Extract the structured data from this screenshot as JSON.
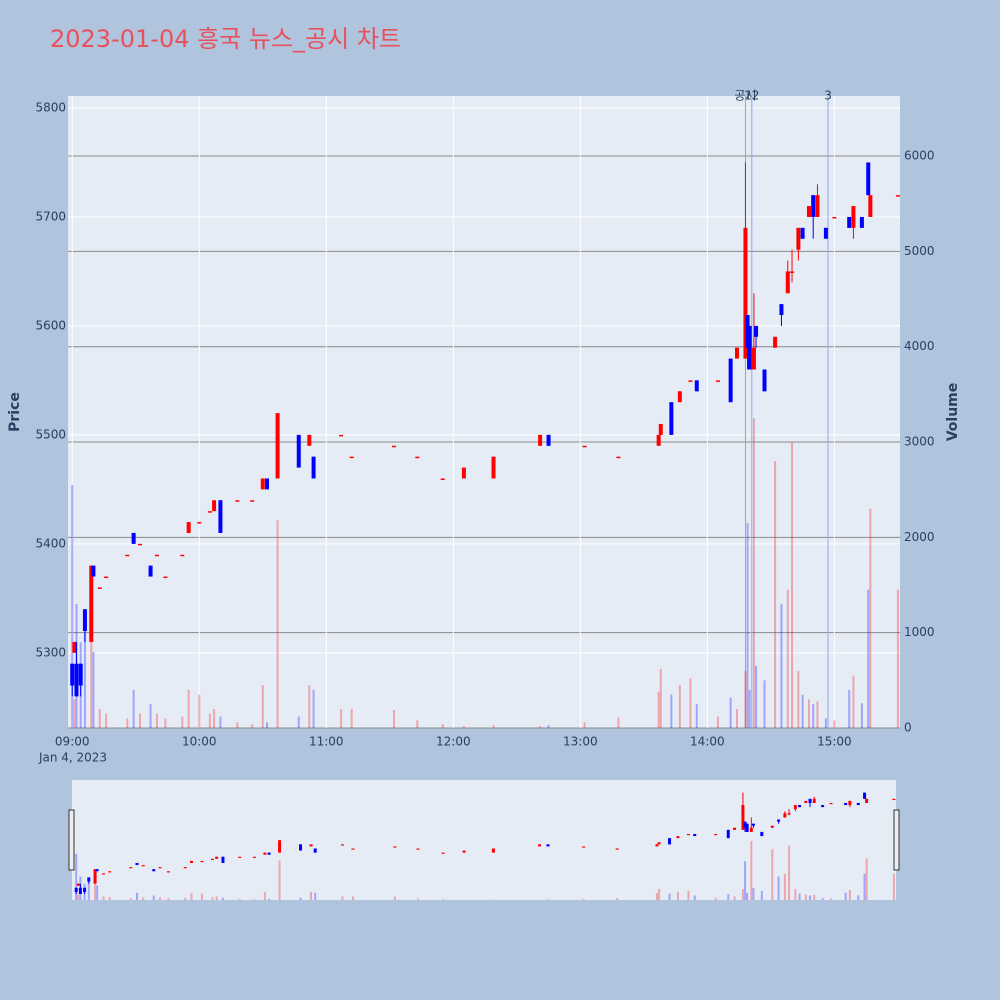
{
  "chart_data": {
    "type": "candlestick",
    "title": "2023-01-04 흥국 뉴스_공시 차트",
    "y_label": "Price",
    "y2_label": "Volume",
    "date_label": "Jan 4, 2023",
    "increasing_color": "#ff0000",
    "decreasing_color": "#0000ff",
    "xlim": [
      "08:58",
      "15:31"
    ],
    "xticks": [
      "09:00",
      "10:00",
      "11:00",
      "12:00",
      "13:00",
      "14:00",
      "15:00"
    ],
    "ylim": [
      5231,
      5811
    ],
    "yticks": [
      5300,
      5400,
      5500,
      5600,
      5700,
      5800
    ],
    "y2lim": [
      0,
      6630
    ],
    "y2ticks": [
      0,
      1000,
      2000,
      3000,
      4000,
      5000,
      6000
    ],
    "x": [
      "09:00",
      "09:01",
      "09:02",
      "09:04",
      "09:06",
      "09:09",
      "09:10",
      "09:13",
      "09:16",
      "09:26",
      "09:29",
      "09:32",
      "09:37",
      "09:40",
      "09:44",
      "09:52",
      "09:55",
      "10:00",
      "10:05",
      "10:07",
      "10:10",
      "10:18",
      "10:25",
      "10:30",
      "10:32",
      "10:37",
      "10:47",
      "10:52",
      "10:54",
      "11:07",
      "11:12",
      "11:32",
      "11:43",
      "11:55",
      "12:05",
      "12:19",
      "12:41",
      "12:45",
      "13:02",
      "13:18",
      "13:37",
      "13:38",
      "13:43",
      "13:47",
      "13:52",
      "13:55",
      "14:05",
      "14:11",
      "14:14",
      "14:18",
      "14:19",
      "14:20",
      "14:22",
      "14:23",
      "14:27",
      "14:32",
      "14:35",
      "14:38",
      "14:40",
      "14:43",
      "14:45",
      "14:48",
      "14:50",
      "14:52",
      "14:56",
      "15:00",
      "15:07",
      "15:09",
      "15:13",
      "15:16",
      "15:17",
      "15:30"
    ],
    "open": [
      5290,
      5300,
      5290,
      5290,
      5340,
      5310,
      5380,
      5360,
      5370,
      5390,
      5410,
      5400,
      5380,
      5390,
      5370,
      5390,
      5410,
      5420,
      5430,
      5430,
      5440,
      5440,
      5440,
      5450,
      5460,
      5460,
      5500,
      5490,
      5480,
      5500,
      5480,
      5490,
      5480,
      5460,
      5460,
      5460,
      5490,
      5500,
      5490,
      5480,
      5490,
      5500,
      5530,
      5530,
      5550,
      5550,
      5550,
      5570,
      5570,
      5570,
      5610,
      5600,
      5560,
      5600,
      5560,
      5580,
      5620,
      5630,
      5650,
      5670,
      5690,
      5700,
      5720,
      5700,
      5690,
      5700,
      5700,
      5690,
      5700,
      5750,
      5700,
      5720
    ],
    "high": [
      5290,
      5310,
      5310,
      5290,
      5340,
      5380,
      5380,
      5360,
      5370,
      5390,
      5410,
      5400,
      5380,
      5390,
      5370,
      5390,
      5420,
      5420,
      5430,
      5440,
      5440,
      5440,
      5440,
      5460,
      5460,
      5520,
      5500,
      5500,
      5480,
      5500,
      5480,
      5490,
      5480,
      5460,
      5470,
      5480,
      5500,
      5500,
      5490,
      5480,
      5500,
      5510,
      5530,
      5540,
      5550,
      5550,
      5550,
      5570,
      5580,
      5750,
      5610,
      5600,
      5630,
      5600,
      5560,
      5590,
      5620,
      5660,
      5670,
      5690,
      5690,
      5710,
      5720,
      5730,
      5690,
      5700,
      5700,
      5710,
      5700,
      5750,
      5720,
      5720
    ],
    "low": [
      5260,
      5300,
      5260,
      5260,
      5310,
      5310,
      5370,
      5360,
      5370,
      5390,
      5400,
      5400,
      5370,
      5390,
      5370,
      5390,
      5410,
      5420,
      5430,
      5430,
      5410,
      5440,
      5440,
      5450,
      5450,
      5460,
      5470,
      5490,
      5460,
      5500,
      5480,
      5490,
      5480,
      5460,
      5460,
      5460,
      5490,
      5490,
      5490,
      5480,
      5490,
      5500,
      5500,
      5530,
      5550,
      5540,
      5550,
      5530,
      5570,
      5570,
      5560,
      5560,
      5560,
      5580,
      5540,
      5580,
      5600,
      5630,
      5640,
      5660,
      5680,
      5700,
      5680,
      5700,
      5680,
      5700,
      5690,
      5680,
      5690,
      5720,
      5700,
      5720
    ],
    "close": [
      5270,
      5310,
      5260,
      5270,
      5320,
      5380,
      5370,
      5360,
      5370,
      5390,
      5400,
      5400,
      5370,
      5390,
      5370,
      5390,
      5420,
      5420,
      5430,
      5440,
      5410,
      5440,
      5440,
      5460,
      5450,
      5520,
      5470,
      5500,
      5460,
      5500,
      5480,
      5490,
      5480,
      5460,
      5470,
      5480,
      5500,
      5490,
      5490,
      5480,
      5500,
      5510,
      5500,
      5540,
      5550,
      5540,
      5550,
      5530,
      5580,
      5690,
      5580,
      5560,
      5580,
      5590,
      5540,
      5590,
      5610,
      5650,
      5650,
      5690,
      5680,
      5710,
      5700,
      5720,
      5680,
      5700,
      5690,
      5710,
      5690,
      5720,
      5720,
      5720
    ],
    "volume": [
      2550,
      300,
      1300,
      900,
      1000,
      1350,
      800,
      200,
      150,
      100,
      400,
      150,
      250,
      150,
      100,
      120,
      400,
      350,
      150,
      200,
      120,
      60,
      40,
      450,
      60,
      2180,
      120,
      450,
      400,
      200,
      200,
      190,
      80,
      40,
      20,
      30,
      20,
      30,
      60,
      110,
      380,
      620,
      350,
      450,
      520,
      250,
      120,
      320,
      200,
      600,
      2150,
      400,
      3250,
      650,
      500,
      2800,
      1300,
      1450,
      3000,
      600,
      350,
      300,
      250,
      280,
      100,
      80,
      400,
      550,
      260,
      1450,
      2300,
      1450
    ],
    "annotations": [
      {
        "label": "공시",
        "x": "14:18",
        "color": "#7fbf7f"
      },
      {
        "label": "12",
        "x": "14:21",
        "color": "#8fa8e8"
      },
      {
        "label": "3",
        "x": "14:57",
        "color": "#8fa8e8"
      }
    ]
  }
}
